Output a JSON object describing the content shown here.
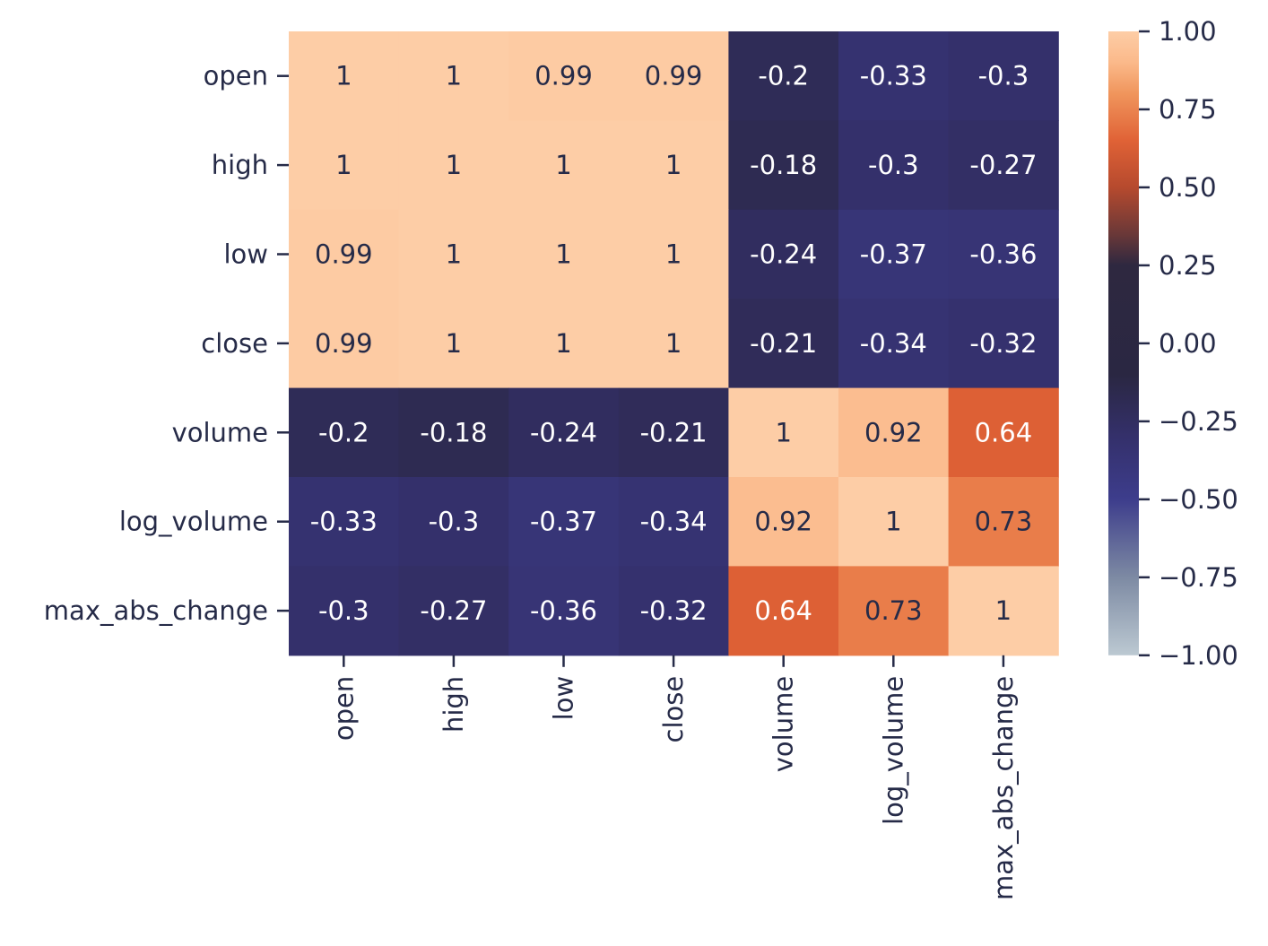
{
  "chart_data": {
    "type": "heatmap",
    "title": "",
    "xlabel": "",
    "ylabel": "",
    "rows": [
      "open",
      "high",
      "low",
      "close",
      "volume",
      "log_volume",
      "max_abs_change"
    ],
    "columns": [
      "open",
      "high",
      "low",
      "close",
      "volume",
      "log_volume",
      "max_abs_change"
    ],
    "values": [
      [
        1,
        1,
        0.99,
        0.99,
        -0.2,
        -0.33,
        -0.3
      ],
      [
        1,
        1,
        1,
        1,
        -0.18,
        -0.3,
        -0.27
      ],
      [
        0.99,
        1,
        1,
        1,
        -0.24,
        -0.37,
        -0.36
      ],
      [
        0.99,
        1,
        1,
        1,
        -0.21,
        -0.34,
        -0.32
      ],
      [
        -0.2,
        -0.18,
        -0.24,
        -0.21,
        1,
        0.92,
        0.64
      ],
      [
        -0.33,
        -0.3,
        -0.37,
        -0.34,
        0.92,
        1,
        0.73
      ],
      [
        -0.3,
        -0.27,
        -0.36,
        -0.32,
        0.64,
        0.73,
        1
      ]
    ],
    "annotations": [
      [
        "1",
        "1",
        "0.99",
        "0.99",
        "-0.2",
        "-0.33",
        "-0.3"
      ],
      [
        "1",
        "1",
        "1",
        "1",
        "-0.18",
        "-0.3",
        "-0.27"
      ],
      [
        "0.99",
        "1",
        "1",
        "1",
        "-0.24",
        "-0.37",
        "-0.36"
      ],
      [
        "0.99",
        "1",
        "1",
        "1",
        "-0.21",
        "-0.34",
        "-0.32"
      ],
      [
        "-0.2",
        "-0.18",
        "-0.24",
        "-0.21",
        "1",
        "0.92",
        "0.64"
      ],
      [
        "-0.33",
        "-0.3",
        "-0.37",
        "-0.34",
        "0.92",
        "1",
        "0.73"
      ],
      [
        "-0.3",
        "-0.27",
        "-0.36",
        "-0.32",
        "0.64",
        "0.73",
        "1"
      ]
    ],
    "colorbar": {
      "vmin": -1.0,
      "vmax": 1.0,
      "ticks": [
        1.0,
        0.75,
        0.5,
        0.25,
        0.0,
        -0.25,
        -0.5,
        -0.75,
        -1.0
      ],
      "tick_labels": [
        "1.00",
        "0.75",
        "0.50",
        "0.25",
        "0.00",
        "−0.25",
        "−0.50",
        "−0.75",
        "−1.00"
      ],
      "colormap": [
        {
          "value": -1.0,
          "color": "#bcc9d2"
        },
        {
          "value": -0.75,
          "color": "#7d8aa3"
        },
        {
          "value": -0.5,
          "color": "#3d3d8c"
        },
        {
          "value": -0.3,
          "color": "#34306b"
        },
        {
          "value": -0.1,
          "color": "#2a2742"
        },
        {
          "value": 0.25,
          "color": "#2e2840"
        },
        {
          "value": 0.35,
          "color": "#6a3838"
        },
        {
          "value": 0.5,
          "color": "#b64a2e"
        },
        {
          "value": 0.65,
          "color": "#e06236"
        },
        {
          "value": 0.8,
          "color": "#f0955c"
        },
        {
          "value": 0.9,
          "color": "#fbb98a"
        },
        {
          "value": 1.0,
          "color": "#fdcda6"
        }
      ]
    },
    "annotation_colors": {
      "light": "#ffffff",
      "dark": "#262b48"
    },
    "grid": false,
    "legend": "colorbar-right"
  }
}
